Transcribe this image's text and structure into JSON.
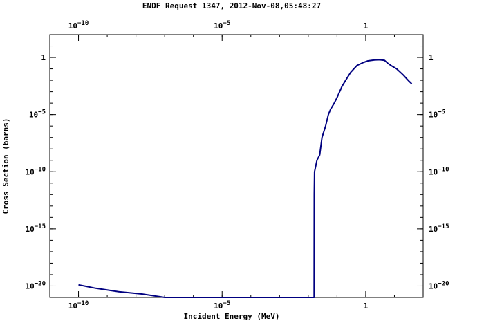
{
  "chart_data": {
    "type": "line",
    "title": "ENDF Request 1347, 2012-Nov-08,05:48:27",
    "xlabel": "Incident Energy (MeV)",
    "ylabel": "Cross Section (barns)",
    "x_scale": "log",
    "y_scale": "log",
    "xlim": [
      1e-11,
      100
    ],
    "ylim": [
      1e-21,
      100
    ],
    "x_ticks": [
      {
        "value": 1e-10,
        "base": "10",
        "exp": "−10"
      },
      {
        "value": 1e-05,
        "base": "10",
        "exp": "−5"
      },
      {
        "value": 1,
        "base": "1",
        "exp": ""
      }
    ],
    "y_ticks": [
      {
        "value": 1,
        "base": "1",
        "exp": ""
      },
      {
        "value": 1e-05,
        "base": "10",
        "exp": "−5"
      },
      {
        "value": 1e-10,
        "base": "10",
        "exp": "−10"
      },
      {
        "value": 1e-15,
        "base": "10",
        "exp": "−15"
      },
      {
        "value": 1e-20,
        "base": "10",
        "exp": "−20"
      }
    ],
    "grid": false,
    "series": [
      {
        "color": "#000080",
        "points": [
          [
            1e-10,
            1.26e-20
          ],
          [
            4e-10,
            6.3e-21
          ],
          [
            2.5e-09,
            3.2e-21
          ],
          [
            1.6e-08,
            2e-21
          ],
          [
            1e-07,
            1e-21
          ],
          [
            1e-06,
            1e-21
          ],
          [
            1e-05,
            1e-21
          ],
          [
            0.0001,
            1e-21
          ],
          [
            0.001,
            1e-21
          ],
          [
            0.015,
            1e-21
          ],
          [
            0.016,
            1e-21
          ],
          [
            0.0162,
            1e-12
          ],
          [
            0.0165,
            1e-10
          ],
          [
            0.02,
            1e-09
          ],
          [
            0.025,
            3e-09
          ],
          [
            0.03,
            1e-07
          ],
          [
            0.04,
            1e-06
          ],
          [
            0.05,
            1e-05
          ],
          [
            0.06,
            3e-05
          ],
          [
            0.08,
            0.0001
          ],
          [
            0.1,
            0.0003
          ],
          [
            0.15,
            0.003
          ],
          [
            0.2,
            0.01
          ],
          [
            0.3,
            0.05
          ],
          [
            0.5,
            0.2
          ],
          [
            0.8,
            0.35
          ],
          [
            1.2,
            0.5
          ],
          [
            2.0,
            0.6
          ],
          [
            3.0,
            0.63
          ],
          [
            4.5,
            0.55
          ],
          [
            6.0,
            0.3
          ],
          [
            8.0,
            0.18
          ],
          [
            12.0,
            0.1
          ],
          [
            20.0,
            0.03
          ],
          [
            30.0,
            0.01
          ],
          [
            40.0,
            0.005
          ]
        ]
      }
    ]
  }
}
